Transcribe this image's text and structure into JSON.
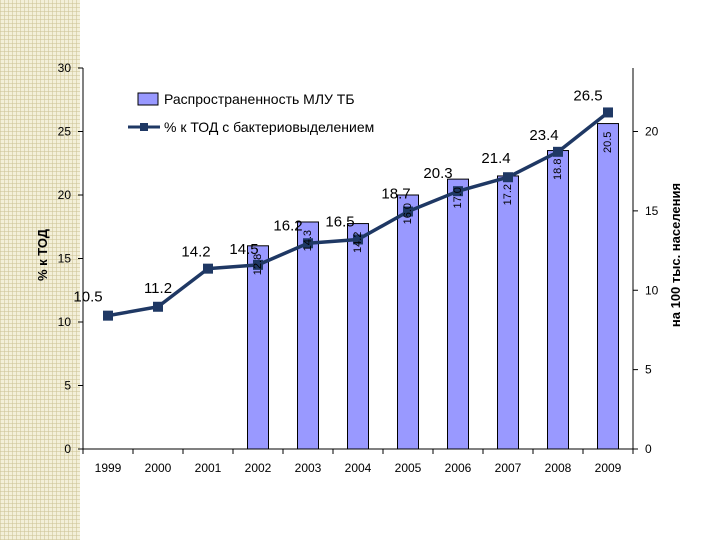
{
  "chart_data": {
    "type": "bar+line",
    "categories": [
      "1999",
      "2000",
      "2001",
      "2002",
      "2003",
      "2004",
      "2005",
      "2006",
      "2007",
      "2008",
      "2009"
    ],
    "series": [
      {
        "name": "Распространенность МЛУ ТБ",
        "type": "bar",
        "axis": "right",
        "color": "#9999ff",
        "values": [
          null,
          null,
          null,
          12.8,
          14.3,
          14.2,
          16.0,
          17.0,
          17.2,
          18.8,
          20.5
        ],
        "labels": [
          "",
          "",
          "",
          "12.8",
          "14.3",
          "14.2",
          "16.0",
          "17.0",
          "17.2",
          "18.8",
          "20.5"
        ]
      },
      {
        "name": "% к ТОД с бактериовыделением",
        "type": "line",
        "axis": "left",
        "color": "#1f3864",
        "values": [
          10.5,
          11.2,
          14.2,
          14.5,
          16.2,
          16.5,
          18.7,
          20.3,
          21.4,
          23.4,
          26.5
        ],
        "labels": [
          "10.5",
          "11.2",
          "14.2",
          "14.5",
          "16.2",
          "16.5",
          "18.7",
          "20.3",
          "21.4",
          "23.4",
          "26.5"
        ]
      }
    ],
    "left_axis": {
      "label": "% к ТОД",
      "range": [
        0,
        30
      ],
      "ticks": [
        "0",
        "5",
        "10",
        "15",
        "20",
        "25",
        "30"
      ]
    },
    "right_axis": {
      "label": "на 100 тыс. населения",
      "range": [
        0,
        24
      ],
      "ticks": [
        "0",
        "5",
        "10",
        "15",
        "20"
      ]
    },
    "legend": {
      "position": "top-center",
      "items": [
        "Распространенность МЛУ ТБ",
        "% к ТОД с бактериовыделением"
      ]
    },
    "grid": false
  }
}
